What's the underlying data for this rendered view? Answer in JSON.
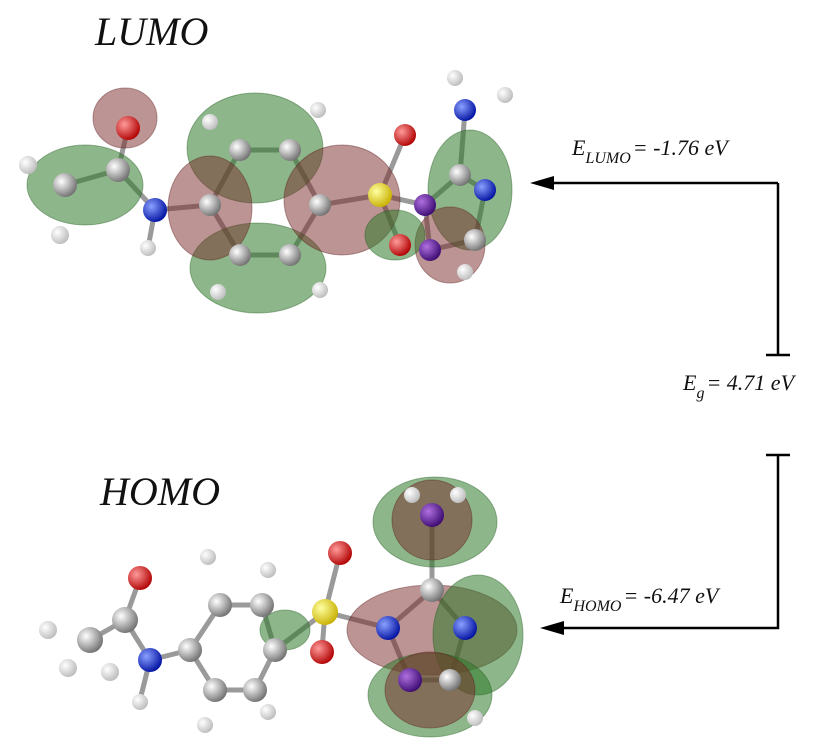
{
  "labels": {
    "lumo": "LUMO",
    "homo": "HOMO"
  },
  "levels": [
    {
      "symbol": "E",
      "subscript": "LUMO",
      "value": "= -1.76 eV"
    },
    {
      "symbol": "E",
      "subscript": "g",
      "value": "= 4.71 eV"
    },
    {
      "symbol": "E",
      "subscript": "HOMO",
      "value": "= -6.47 eV"
    }
  ]
}
